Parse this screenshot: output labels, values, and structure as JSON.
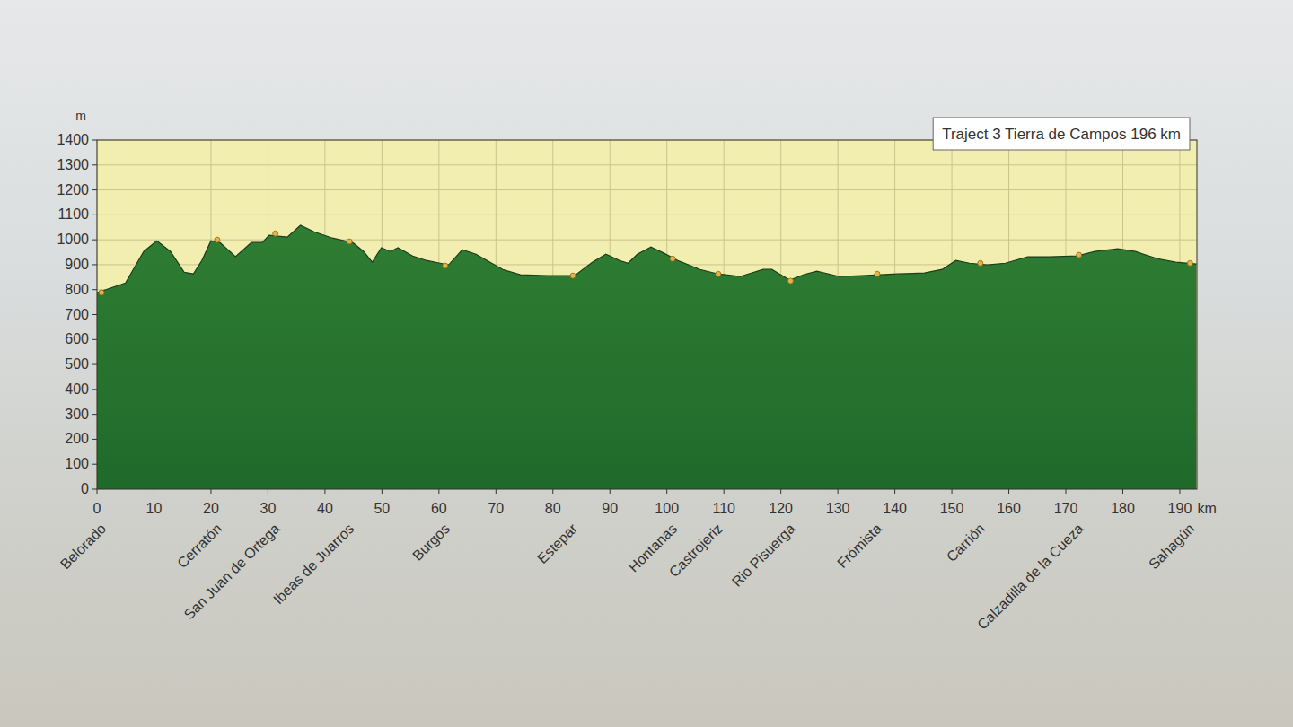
{
  "chart_data": {
    "type": "area",
    "title": "Traject 3 Tierra de Campos 196 km",
    "x_label": "km",
    "y_label": "m",
    "color": "#2f7d33",
    "grid": true,
    "xlim": [
      0,
      193
    ],
    "ylim": [
      0,
      1400
    ],
    "xticks": [
      0,
      10,
      20,
      30,
      40,
      50,
      60,
      70,
      80,
      90,
      100,
      110,
      120,
      130,
      140,
      150,
      160,
      170,
      180,
      190
    ],
    "yticks": [
      0,
      100,
      200,
      300,
      400,
      500,
      600,
      700,
      800,
      900,
      1000,
      1100,
      1200,
      1300,
      1400
    ],
    "x": [
      0,
      5,
      8.2,
      10.5,
      12.9,
      15.3,
      16.9,
      18.4,
      20,
      21.6,
      24.3,
      27.1,
      29,
      30.2,
      33.4,
      35.7,
      38.1,
      41.3,
      44.9,
      46.8,
      48.3,
      49.9,
      51.5,
      52.8,
      55.4,
      57.8,
      60.2,
      61.7,
      64.1,
      66.5,
      71.2,
      74.3,
      79.1,
      83.8,
      86.9,
      89.3,
      91.7,
      93.2,
      94.8,
      97.2,
      99.5,
      101.9,
      105.8,
      109,
      112.9,
      116.9,
      118.4,
      121.6,
      124,
      126.3,
      130.2,
      134.2,
      140.5,
      145.2,
      148.3,
      150.7,
      153.1,
      156.2,
      159.4,
      163.3,
      167.2,
      172,
      175.1,
      179.1,
      182.2,
      186.1,
      189.3,
      192.9
    ],
    "values": [
      788,
      827,
      953,
      996,
      953,
      870,
      863,
      917,
      996,
      989,
      932,
      989,
      989,
      1018,
      1011,
      1058,
      1032,
      1007,
      989,
      953,
      910,
      968,
      953,
      968,
      935,
      917,
      906,
      899,
      960,
      942,
      881,
      860,
      856,
      856,
      910,
      942,
      917,
      906,
      942,
      971,
      946,
      917,
      881,
      863,
      853,
      881,
      881,
      838,
      860,
      874,
      853,
      856,
      863,
      867,
      881,
      917,
      906,
      899,
      906,
      932,
      932,
      935,
      953,
      964,
      953,
      924,
      910,
      903
    ],
    "annotations": [
      {
        "text": "Belorado",
        "x": 0.8,
        "y": 788
      },
      {
        "text": "Cerratón",
        "x": 21.1,
        "y": 1000
      },
      {
        "text": "San Juan de Ortega",
        "x": 31.3,
        "y": 1025
      },
      {
        "text": "Ibeas de Juarros",
        "x": 44.3,
        "y": 993
      },
      {
        "text": "Burgos",
        "x": 61.1,
        "y": 896
      },
      {
        "text": "Estepar",
        "x": 83.5,
        "y": 856
      },
      {
        "text": "Hontanas",
        "x": 101,
        "y": 924
      },
      {
        "text": "Castrojeriz",
        "x": 109,
        "y": 863
      },
      {
        "text": "Rio Pisuerga",
        "x": 121.7,
        "y": 835
      },
      {
        "text": "Frómista",
        "x": 136.9,
        "y": 863
      },
      {
        "text": "Carrión",
        "x": 155,
        "y": 906
      },
      {
        "text": "Calzadilla de la Cueza",
        "x": 172.3,
        "y": 939
      },
      {
        "text": "Sahagún",
        "x": 191.8,
        "y": 906
      }
    ]
  }
}
